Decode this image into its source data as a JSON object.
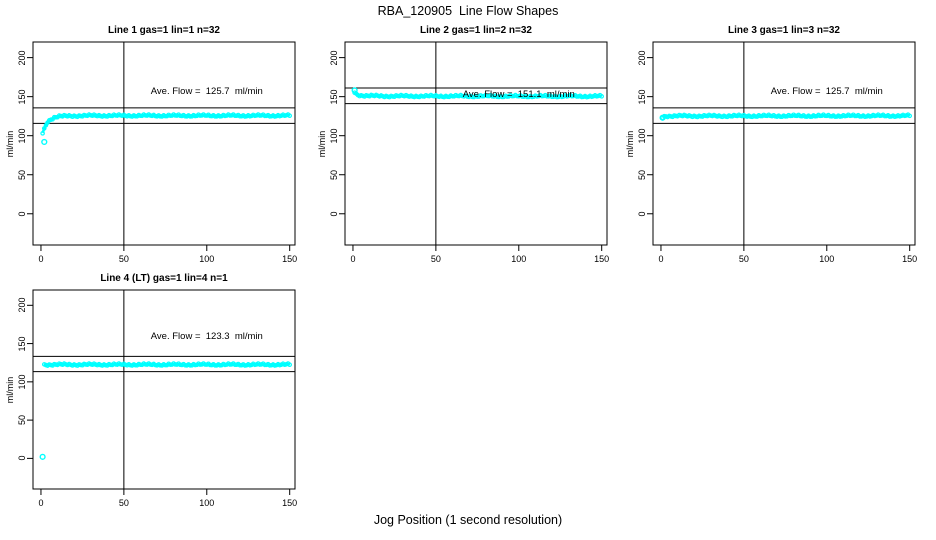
{
  "figure_title": "RBA_120905  Line Flow Shapes",
  "x_axis_label": "Jog Position (1 second resolution)",
  "y_axis_label": "ml/min",
  "colors": {
    "points": "#00ffff",
    "axis": "#000000",
    "background": "#ffffff"
  },
  "axes": {
    "x_ticks": [
      0,
      50,
      100,
      150
    ],
    "y_ticks": [
      0,
      50,
      100,
      150,
      200
    ],
    "xlim": [
      -4.8,
      153.2
    ],
    "ylim": [
      -40,
      220
    ],
    "vline_x": 50
  },
  "chart_data": [
    {
      "type": "scatter",
      "title": "Line 1 gas=1 lin=1 n=32",
      "ave_flow": 125.7,
      "ave_flow_label": "Ave. Flow =  125.7  ml/min",
      "label_center": [
        100,
        156
      ],
      "ref_lines_y": [
        115.7,
        135.7
      ],
      "vline_x": 50,
      "outlier_points": [
        [
          2,
          92
        ]
      ],
      "profile_keypoints": [
        [
          1,
          104
        ],
        [
          2,
          109
        ],
        [
          3,
          114
        ],
        [
          4,
          118
        ],
        [
          6,
          121
        ],
        [
          8,
          123
        ],
        [
          11,
          124.5
        ],
        [
          16,
          125.3
        ],
        [
          30,
          125.7
        ],
        [
          150,
          125.7
        ]
      ]
    },
    {
      "type": "scatter",
      "title": "Line 2 gas=1 lin=2 n=32",
      "ave_flow": 151.1,
      "ave_flow_label": "Ave. Flow =  151.1  ml/min",
      "label_center": [
        100,
        152
      ],
      "ref_lines_y": [
        141.1,
        161.1
      ],
      "vline_x": 50,
      "outlier_points": [
        [
          1,
          158
        ]
      ],
      "profile_keypoints": [
        [
          1,
          156
        ],
        [
          2,
          153.5
        ],
        [
          3,
          152.5
        ],
        [
          5,
          151.5
        ],
        [
          9,
          151
        ],
        [
          20,
          150.7
        ],
        [
          150,
          150.5
        ]
      ]
    },
    {
      "type": "scatter",
      "title": "Line 3 gas=1 lin=3 n=32",
      "ave_flow": 125.7,
      "ave_flow_label": "Ave. Flow =  125.7  ml/min",
      "label_center": [
        100,
        156
      ],
      "ref_lines_y": [
        115.7,
        135.7
      ],
      "vline_x": 50,
      "outlier_points": [
        [
          1,
          123
        ]
      ],
      "profile_keypoints": [
        [
          1,
          124
        ],
        [
          3,
          125.2
        ],
        [
          150,
          125.5
        ]
      ]
    },
    {
      "type": "scatter",
      "title": "Line 4 (LT) gas=1 lin=4 n=1",
      "ave_flow": 123.3,
      "ave_flow_label": "Ave. Flow =  123.3  ml/min",
      "label_center": [
        100,
        158
      ],
      "ref_lines_y": [
        113.3,
        133.3
      ],
      "vline_x": 50,
      "outlier_points": [
        [
          1,
          2
        ]
      ],
      "profile_keypoints": [
        [
          2,
          122.5
        ],
        [
          150,
          122.5
        ]
      ]
    }
  ]
}
